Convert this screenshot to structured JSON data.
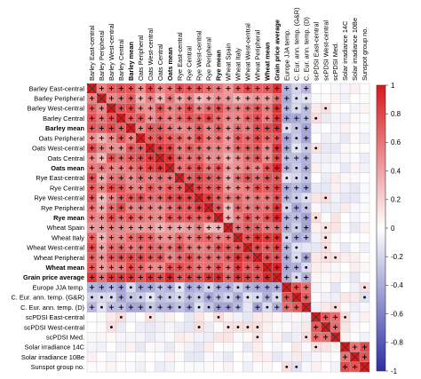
{
  "chart_data": {
    "type": "heatmap",
    "title": "",
    "xlabel": "",
    "ylabel": "",
    "labels": [
      "Barley East-central",
      "Barley Peripheral",
      "Barley West-central",
      "Barley Central",
      "Barley mean",
      "Oats Peripheral",
      "Oats West-central",
      "Oats Central",
      "Oats mean",
      "Rye East-central",
      "Rye Central",
      "Rye West-central",
      "Rye Peripheral",
      "Rye mean",
      "Wheat Spain",
      "Wheat Italy",
      "Wheat West-central",
      "Wheat Peripheral",
      "Wheat mean",
      "Grain price average",
      "Europe JJA temp.",
      "C. Eur. ann. temp. (G&R)",
      "C. Eur. ann. temp. (D)",
      "scPDSI East-central",
      "scPDSI West-central",
      "scPDSI Med.",
      "Solar irradiance 14C",
      "Solar irradiance 10Be",
      "Sunspot group no."
    ],
    "bold_labels": [
      "Barley mean",
      "Oats mean",
      "Rye mean",
      "Wheat mean",
      "Grain price average"
    ],
    "colorbar": {
      "min": -1,
      "max": 1,
      "ticks": [
        1,
        0.8,
        0.6,
        0.4,
        0.2,
        0,
        -0.2,
        -0.4,
        -0.6,
        -0.8,
        -1
      ],
      "low_color": "#2b2fa3",
      "mid_color": "#ffffff",
      "high_color": "#d7191c"
    },
    "grid": true,
    "diagonal_marker": "cross",
    "significance_markers": {
      "strong": "+",
      "weak": "•"
    }
  }
}
